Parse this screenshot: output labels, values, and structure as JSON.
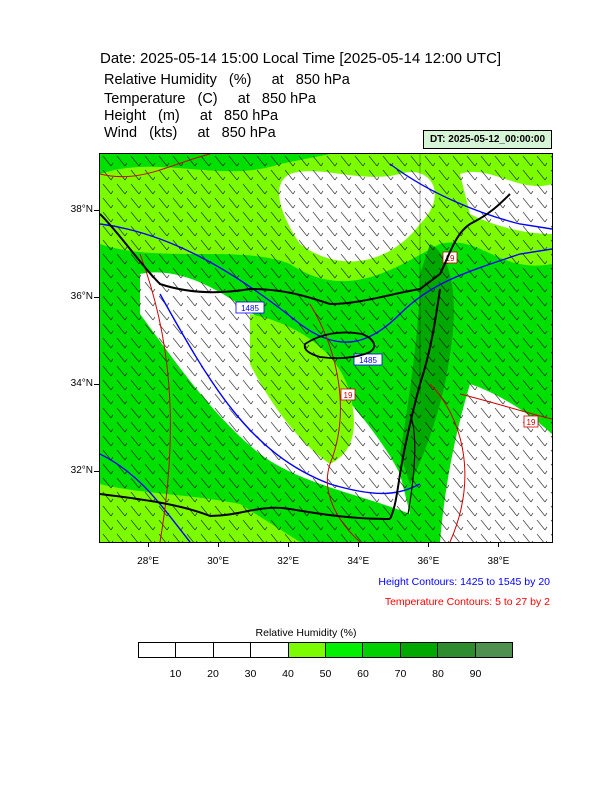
{
  "title": "Date: 2025-05-14  15:00 Local Time [2025-05-14  12:00 UTC]",
  "fields": [
    {
      "name": "Relative Humidity   (%)     at   850 hPa"
    },
    {
      "name": "Temperature   (C)     at   850 hPa"
    },
    {
      "name": "Height   (m)     at   850 hPa"
    },
    {
      "name": "Wind   (kts)     at   850 hPa"
    }
  ],
  "init_time": "DT: 2025-05-12_00:00:00",
  "map": {
    "lat_labels": [
      "38°N",
      "36°N",
      "34°N",
      "32°N"
    ],
    "lon_labels": [
      "28°E",
      "30°E",
      "32°E",
      "34°E",
      "36°E",
      "38°E"
    ],
    "lat_values": [
      38,
      36,
      34,
      32
    ],
    "lon_values": [
      28,
      30,
      32,
      34,
      36,
      38
    ],
    "extent": {
      "lon_min": 26.6,
      "lon_max": 39.5,
      "lat_min": 30.4,
      "lat_max": 39.3
    },
    "height_contour_labels": [
      "1485",
      "1485"
    ],
    "temperature_contour_labels": [
      "19",
      "19",
      "19"
    ],
    "colors": {
      "land_outline": "#000000",
      "height_contour": "#0000ff",
      "temperature_contour": "#ff0000"
    }
  },
  "notes": {
    "height": "Height Contours: 1425 to 1545 by 20",
    "temperature": "Temperature Contours: 5 to 27 by 2"
  },
  "colorbar": {
    "title": "Relative Humidity  (%)",
    "labels": [
      "10",
      "20",
      "30",
      "40",
      "50",
      "60",
      "70",
      "80",
      "90"
    ],
    "colors": [
      "#ffffff",
      "#ffffff",
      "#ffffff",
      "#ffffff",
      "#7cfc00",
      "#00f000",
      "#00d000",
      "#00a800",
      "#2e8b2e",
      "#4f8f4f"
    ]
  }
}
